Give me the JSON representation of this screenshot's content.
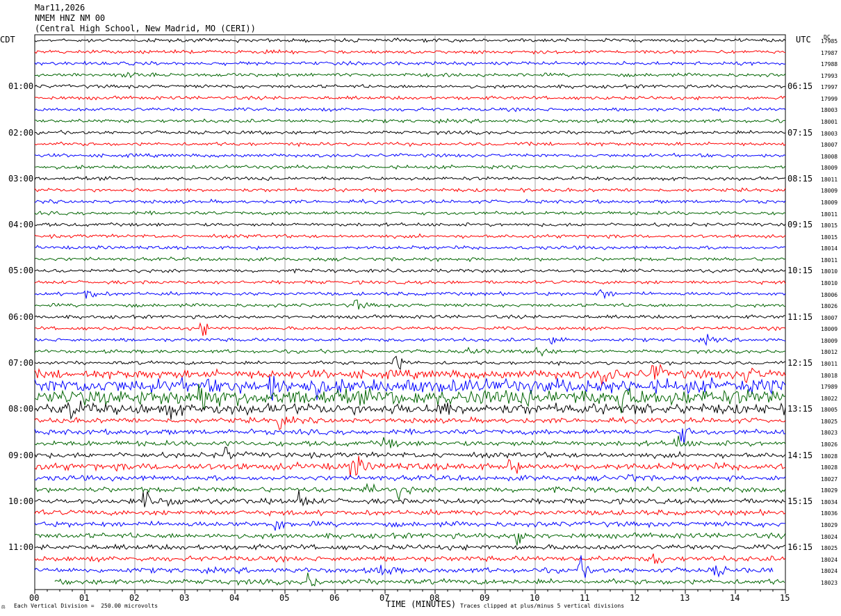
{
  "header": {
    "date": "Mar11,2026",
    "station": "NMEM HNZ NM 00",
    "location": "(Central High School, New Madrid, MO (CERI))"
  },
  "left_label": "CDT",
  "right_label": "UTC",
  "dc_label": "DC",
  "footer": {
    "scale": "Each Vertical Division =  250.00 microvolts",
    "xlabel": "TIME (MINUTES)",
    "clip_note": "Traces clipped at plus/minus 5 vertical divisions",
    "mark": "⚖"
  },
  "colors": {
    "cycle": [
      "#000000",
      "#ff0000",
      "#0000ff",
      "#006400"
    ],
    "grid": "#a0a0a0"
  },
  "chart_data": {
    "type": "line",
    "title": "",
    "xlabel": "TIME (MINUTES)",
    "xlim": [
      0,
      15
    ],
    "x_ticks": [
      "00",
      "01",
      "02",
      "03",
      "04",
      "05",
      "06",
      "07",
      "08",
      "09",
      "10",
      "11",
      "12",
      "13",
      "14",
      "15"
    ],
    "left_hour_labels": [
      "01:00",
      "02:00",
      "03:00",
      "04:00",
      "05:00",
      "06:00",
      "07:00",
      "08:00",
      "09:00",
      "10:00",
      "11:00"
    ],
    "right_hour_labels": [
      "06:15",
      "07:15",
      "08:15",
      "09:15",
      "10:15",
      "11:15",
      "12:15",
      "13:15",
      "14:15",
      "15:15",
      "16:15"
    ],
    "trace_dc_offsets": [
      17985,
      17987,
      17988,
      17993,
      17997,
      17999,
      18003,
      18001,
      18003,
      18007,
      18008,
      18009,
      18011,
      18009,
      18009,
      18011,
      18015,
      18015,
      18014,
      18011,
      18010,
      18010,
      18006,
      18026,
      18007,
      18009,
      18009,
      18012,
      18011,
      18018,
      17989,
      18022,
      18005,
      18025,
      18023,
      18026,
      18028,
      18028,
      18027,
      18029,
      18034,
      18036,
      18029,
      18024,
      18025,
      18024,
      18024,
      18023
    ],
    "trace_noise_level": [
      2,
      2,
      2,
      2,
      2,
      2,
      2,
      2,
      2,
      2,
      2,
      2,
      2,
      2,
      2,
      2,
      2,
      2,
      2,
      2,
      2,
      2,
      2,
      2,
      2,
      2,
      2,
      2,
      2,
      5,
      8,
      9,
      6,
      3,
      3,
      3,
      3,
      4,
      3,
      3,
      3,
      3,
      3,
      3,
      3,
      3,
      3,
      3
    ],
    "events": [
      {
        "trace": 3,
        "minute": 1.8,
        "amp": 5
      },
      {
        "trace": 22,
        "minute": 1.05,
        "amp": 9
      },
      {
        "trace": 22,
        "minute": 11.3,
        "amp": 9
      },
      {
        "trace": 23,
        "minute": 6.4,
        "amp": 8
      },
      {
        "trace": 25,
        "minute": 3.35,
        "amp": 9
      },
      {
        "trace": 26,
        "minute": 10.35,
        "amp": 7
      },
      {
        "trace": 26,
        "minute": 13.4,
        "amp": 5
      },
      {
        "trace": 27,
        "minute": 8.7,
        "amp": 8
      },
      {
        "trace": 27,
        "minute": 10.05,
        "amp": 9
      },
      {
        "trace": 28,
        "minute": 7.2,
        "amp": 14
      },
      {
        "trace": 29,
        "minute": 11.35,
        "amp": 18
      },
      {
        "trace": 29,
        "minute": 12.35,
        "amp": 14
      },
      {
        "trace": 29,
        "minute": 14.2,
        "amp": 12
      },
      {
        "trace": 30,
        "minute": 4.7,
        "amp": 16
      },
      {
        "trace": 30,
        "minute": 5.5,
        "amp": 16
      },
      {
        "trace": 31,
        "minute": 3.3,
        "amp": 18
      },
      {
        "trace": 31,
        "minute": 11.7,
        "amp": 20
      },
      {
        "trace": 32,
        "minute": 0.7,
        "amp": 14
      },
      {
        "trace": 32,
        "minute": 2.65,
        "amp": 10
      },
      {
        "trace": 32,
        "minute": 8.1,
        "amp": 10
      },
      {
        "trace": 33,
        "minute": 4.9,
        "amp": 9
      },
      {
        "trace": 34,
        "minute": 12.95,
        "amp": 12
      },
      {
        "trace": 35,
        "minute": 7.0,
        "amp": 9
      },
      {
        "trace": 35,
        "minute": 12.8,
        "amp": 10
      },
      {
        "trace": 36,
        "minute": 3.8,
        "amp": 9
      },
      {
        "trace": 37,
        "minute": 6.35,
        "amp": 18
      },
      {
        "trace": 37,
        "minute": 9.5,
        "amp": 8
      },
      {
        "trace": 38,
        "minute": 11.8,
        "amp": 9
      },
      {
        "trace": 39,
        "minute": 6.6,
        "amp": 9
      },
      {
        "trace": 39,
        "minute": 7.3,
        "amp": 8
      },
      {
        "trace": 40,
        "minute": 2.2,
        "amp": 12
      },
      {
        "trace": 40,
        "minute": 2.7,
        "amp": 12
      },
      {
        "trace": 40,
        "minute": 5.3,
        "amp": 12
      },
      {
        "trace": 42,
        "minute": 4.8,
        "amp": 10
      },
      {
        "trace": 43,
        "minute": 9.65,
        "amp": 16
      },
      {
        "trace": 45,
        "minute": 12.4,
        "amp": 8
      },
      {
        "trace": 46,
        "minute": 6.9,
        "amp": 12
      },
      {
        "trace": 46,
        "minute": 10.9,
        "amp": 12
      },
      {
        "trace": 46,
        "minute": 13.6,
        "amp": 8
      },
      {
        "trace": 47,
        "minute": 5.5,
        "amp": 9
      }
    ]
  }
}
